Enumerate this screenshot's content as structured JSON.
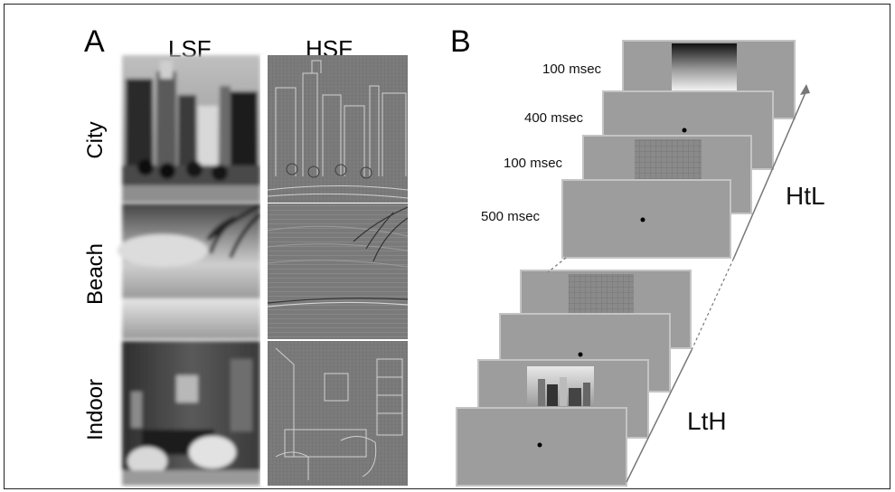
{
  "panel_a": {
    "letter": "A",
    "columns": [
      "LSF",
      "HSF"
    ],
    "rows": [
      "City",
      "Beach",
      "Indoor"
    ]
  },
  "panel_b": {
    "letter": "B",
    "sequence_htl": {
      "label": "HtL",
      "timings": [
        "100 msec",
        "400 msec",
        "100 msec",
        "500 msec"
      ]
    },
    "sequence_lth": {
      "label": "LtH"
    }
  },
  "colors": {
    "screen_fill": "#9d9d9d",
    "screen_border": "#bdbdbd",
    "arrow": "#777777",
    "fixation_dot": "#000000"
  }
}
